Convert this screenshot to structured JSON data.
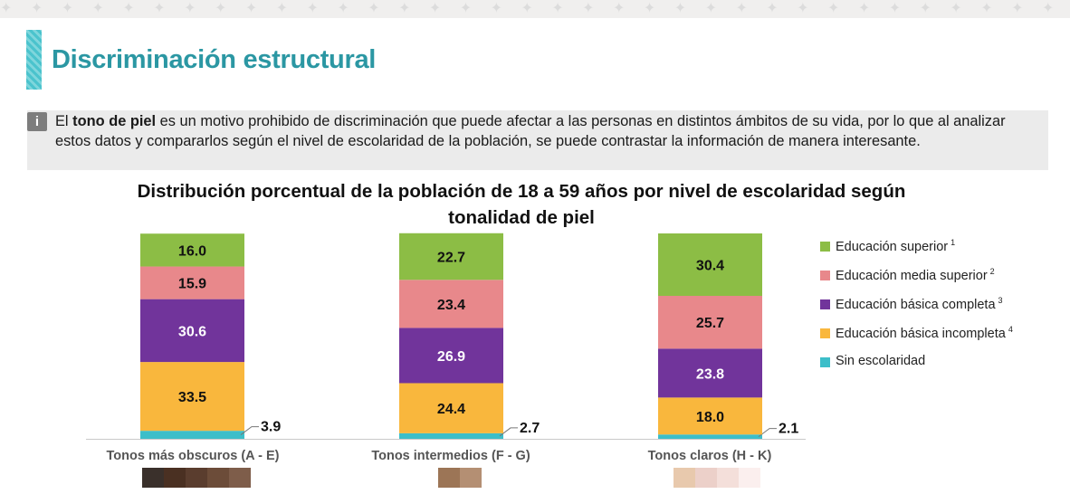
{
  "header": {
    "pattern": "✦ ✦ ✦ ✦ ✦ ✦ ✦ ✦ ✦ ✦ ✦ ✦ ✦ ✦ ✦ ✦ ✦ ✦ ✦ ✦ ✦ ✦ ✦ ✦ ✦ ✦ ✦ ✦ ✦ ✦ ✦ ✦ ✦ ✦ ✦ ✦ ✦ ✦ ✦ ✦ ✦ ✦ ✦ ✦ ✦ ✦ ✦ ✦ ✦ ✦ ✦ ✦ ✦ ✦ ✦ ✦ ✦ ✦ ✦ ✦",
    "title": "Discriminación estructural"
  },
  "info": {
    "icon": "i",
    "text_1": "El ",
    "text_bold": "tono de piel",
    "text_2": " es un motivo prohibido de discriminación que puede afectar a las personas en distintos ámbitos de su vida, por lo que al analizar estos datos y compararlos según el nivel de escolaridad de la población, se puede contrastar la información de manera interesante."
  },
  "chart_title": {
    "p1": "Distribución porcentual",
    "p2": " de la población de ",
    "p3": "18 a 59 años",
    "p4": " por ",
    "p5": "nivel de escolaridad",
    "p6": " según ",
    "p7": "tonalidad de piel"
  },
  "chart_data": {
    "type": "bar",
    "stacked": true,
    "categories": [
      "Tonos más obscuros (A - E)",
      "Tonos intermedios (F - G)",
      "Tonos claros (H - K)"
    ],
    "series": [
      {
        "name": "Sin escolaridad",
        "values": [
          3.9,
          2.7,
          2.1
        ],
        "color": "#3cbec9"
      },
      {
        "name": "Educación básica incompleta",
        "sup": "4",
        "values": [
          33.5,
          24.4,
          18.0
        ],
        "color": "#f9b73d"
      },
      {
        "name": "Educación básica completa",
        "sup": "3",
        "values": [
          30.6,
          26.9,
          23.8
        ],
        "color": "#71349b"
      },
      {
        "name": "Educación media superior",
        "sup": "2",
        "values": [
          15.9,
          23.4,
          25.7
        ],
        "color": "#e8888b"
      },
      {
        "name": "Educación superior",
        "sup": "1",
        "values": [
          16.0,
          22.7,
          30.4
        ],
        "color": "#8cbd45"
      }
    ],
    "legend_order": [
      "Educación superior",
      "Educación media superior",
      "Educación básica completa",
      "Educación básica incompleta",
      "Sin escolaridad"
    ],
    "ylim": [
      0,
      100
    ],
    "skin_tone_swatches": [
      [
        "#3a302b",
        "#4a3022",
        "#5a3d2e",
        "#6c4c39",
        "#7e5d4a"
      ],
      [
        "#9c7556",
        "#b48f73"
      ],
      [
        "#e8c9ad",
        "#ecd0c9",
        "#f4dfda",
        "#fbefee"
      ]
    ]
  }
}
